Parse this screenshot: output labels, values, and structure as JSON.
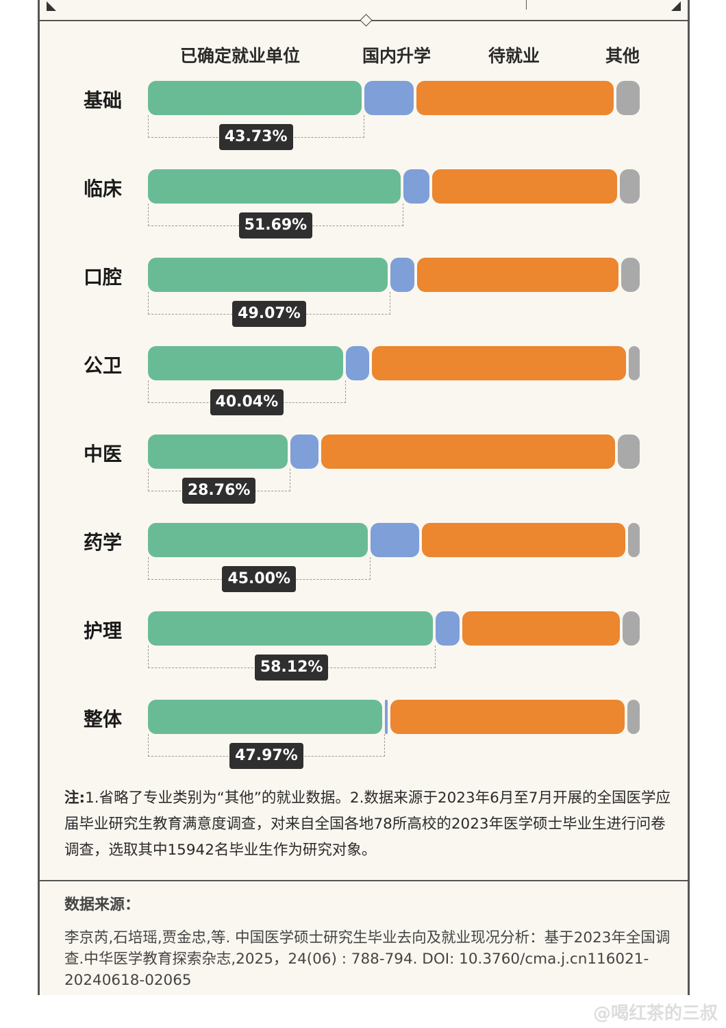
{
  "chart_data": {
    "type": "bar",
    "orientation": "horizontal-stacked",
    "categories": [
      "基础",
      "临床",
      "口腔",
      "公卫",
      "中医",
      "药学",
      "护理",
      "整体"
    ],
    "series": [
      {
        "name": "已确定就业单位",
        "color": "#69bb96",
        "values": [
          43.73,
          51.69,
          49.07,
          40.04,
          28.76,
          45.0,
          58.12,
          47.97
        ]
      },
      {
        "name": "国内升学",
        "color": "#7e9fd8",
        "values": [
          10.5,
          5.8,
          5.3,
          5.2,
          6.3,
          10.4,
          5.5,
          1.0
        ]
      },
      {
        "name": "待就业",
        "color": "#ec862f",
        "values": [
          40.5,
          38.0,
          41.3,
          52.0,
          60.0,
          41.7,
          32.4,
          48.0
        ]
      },
      {
        "name": "其他",
        "color": "#a9a9a9",
        "values": [
          5.27,
          4.51,
          4.33,
          2.76,
          4.94,
          2.9,
          3.98,
          3.03
        ]
      }
    ],
    "data_labels": [
      "43.73%",
      "51.69%",
      "49.07%",
      "40.04%",
      "28.76%",
      "45.00%",
      "58.12%",
      "47.97%"
    ],
    "legend_position": "top",
    "xlim": [
      0,
      100
    ],
    "grid": false
  },
  "note": {
    "prefix": "注:",
    "text": "1.省略了专业类别为“其他”的就业数据。2.数据来源于2023年6月至7月开展的全国医学应届毕业研究生教育满意度调查，对来自全国各地78所高校的2023年医学硕士毕业生进行问卷调查，选取其中15942名毕业生作为研究对象。"
  },
  "source": {
    "title": "数据来源：",
    "text": "李京芮,石培瑶,贾金忠,等. 中国医学硕士研究生毕业去向及就业现况分析：基于2023年全国调查.中华医学教育探索杂志,2025，24(06) : 788-794. DOI: 10.3760/cma.j.cn116021-20240618-02065"
  },
  "watermark": "@喝红茶的三叔"
}
